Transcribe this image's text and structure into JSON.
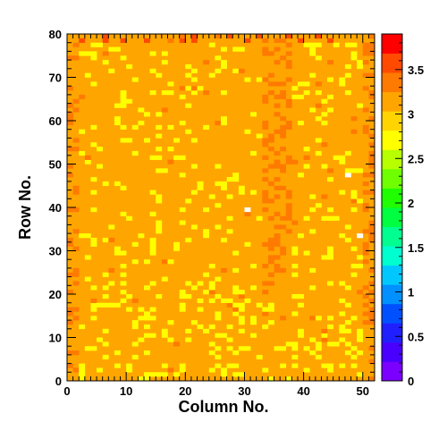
{
  "chart_data": {
    "type": "heatmap",
    "xlabel": "Column No.",
    "ylabel": "Row No.",
    "xlim": [
      0,
      52
    ],
    "ylim": [
      0,
      80
    ],
    "x_ticks": [
      0,
      10,
      20,
      30,
      40,
      50
    ],
    "y_ticks": [
      0,
      10,
      20,
      30,
      40,
      50,
      60,
      70,
      80
    ],
    "grid": false,
    "legend": "colorbar-right",
    "z_range": [
      0,
      3.9
    ],
    "colorbar_ticks": [
      "0",
      "0.5",
      "1",
      "1.5",
      "2",
      "2.5",
      "3",
      "3.5"
    ],
    "colorbar_colors": [
      "#7b00ff",
      "#4a00ff",
      "#2020ff",
      "#0050ff",
      "#0090ff",
      "#00c8ff",
      "#00ffd0",
      "#00ff90",
      "#00ff40",
      "#20ff00",
      "#70ff00",
      "#b8ff00",
      "#ffff00",
      "#ffd400",
      "#ffa500",
      "#ff7a00",
      "#ff4a00",
      "#ff0000"
    ],
    "cell_colors": {
      "base": "#ffa500",
      "low": "#ffff00",
      "high": "#ff7a00",
      "top": "#ff4a00",
      "empty": "#ffffff"
    },
    "dominant_value": 3.3,
    "summary": {
      "base_value": 3.3,
      "low_value": 3.05,
      "high_value": 3.45,
      "top_value": 3.7,
      "high_band_columns": [
        33,
        37
      ],
      "empty_cells": [
        [
          30,
          39
        ],
        [
          47,
          47
        ],
        [
          49,
          33
        ]
      ]
    }
  }
}
